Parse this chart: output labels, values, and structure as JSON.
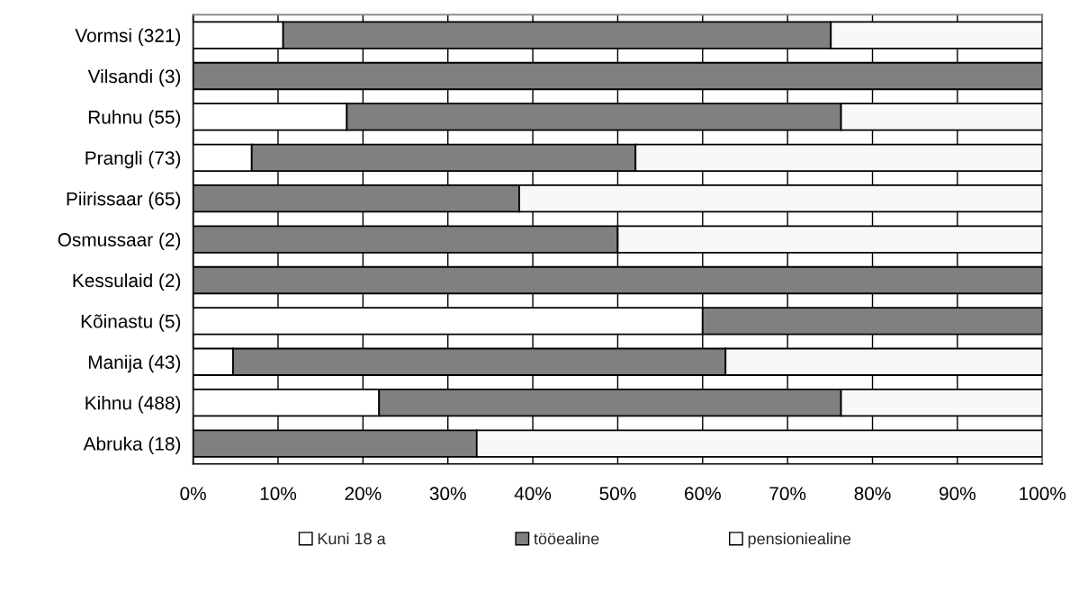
{
  "chart_data": {
    "type": "bar",
    "orientation": "horizontal",
    "stacked": true,
    "categories": [
      "Vormsi (321)",
      "Vilsandi (3)",
      "Ruhnu (55)",
      "Prangli (73)",
      "Piirissaar (65)",
      "Osmussaar (2)",
      "Kessulaid (2)",
      "Kõinastu (5)",
      "Manija (43)",
      "Kihnu (488)",
      "Abruka (18)"
    ],
    "series": [
      {
        "name": "Kuni 18 a",
        "color": "#ffffff",
        "values": [
          10.6,
          null,
          18.1,
          6.9,
          null,
          null,
          null,
          60,
          4.7,
          21.9,
          null
        ]
      },
      {
        "name": "tööealine",
        "color": "#808080",
        "values": [
          64.5,
          100,
          58.2,
          45.2,
          38.4,
          50,
          100,
          40,
          58.0,
          54.4,
          33.4
        ]
      },
      {
        "name": "pensioniealine",
        "color": "#f8f8f8",
        "values": [
          24.9,
          null,
          23.7,
          47.9,
          61.6,
          50,
          null,
          null,
          37.3,
          23.7,
          66.6
        ]
      }
    ],
    "xlim": [
      0,
      100
    ],
    "xticks": [
      {
        "value": 0,
        "label": "0%"
      },
      {
        "value": 10,
        "label": "10%"
      },
      {
        "value": 20,
        "label": "20%"
      },
      {
        "value": 30,
        "label": "30%"
      },
      {
        "value": 40,
        "label": "40%"
      },
      {
        "value": 50,
        "label": "50%"
      },
      {
        "value": 60,
        "label": "60%"
      },
      {
        "value": 70,
        "label": "70%"
      },
      {
        "value": 80,
        "label": "80%"
      },
      {
        "value": 90,
        "label": "90%"
      },
      {
        "value": 100,
        "label": "100%"
      }
    ],
    "grid": "x",
    "legend": "bottom"
  }
}
